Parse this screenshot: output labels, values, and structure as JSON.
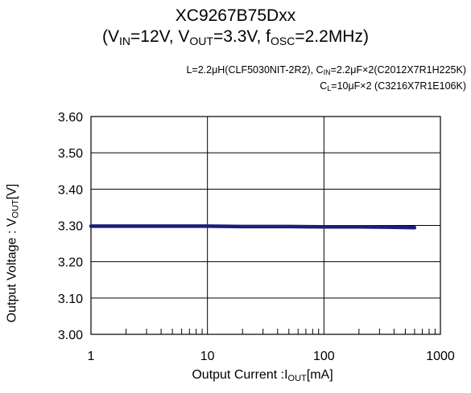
{
  "title": {
    "line1": "XC9267B75Dxx",
    "open": "(V",
    "vin_sub": "IN",
    "vin_val": "=12V, V",
    "vout_sub": "OUT",
    "vout_val": "=3.3V, f",
    "fosc_sub": "OSC",
    "fosc_val": "=2.2MHz)"
  },
  "conditions": {
    "line1_a": "L=2.2μH(CLF5030NIT-2R2), C",
    "line1_sub": "IN",
    "line1_b": "=2.2μF×2(C2012X7R1H225K)",
    "line2_a": "C",
    "line2_sub": "L",
    "line2_b": "=10μF×2 (C3216X7R1E106K)"
  },
  "axes": {
    "x_label_a": "Output Current :I",
    "x_label_sub": "OUT",
    "x_label_b": "[mA]",
    "y_label_a": "Output Voltage : V",
    "y_label_sub": "OUT",
    "y_label_b": "[V]"
  },
  "colors": {
    "series": "#1a1f7a",
    "grid": "#000000"
  },
  "chart_data": {
    "type": "line",
    "x_scale": "log",
    "xlim": [
      1,
      1000
    ],
    "ylim": [
      3.0,
      3.6
    ],
    "x_ticks": [
      "1",
      "10",
      "100",
      "1000"
    ],
    "y_ticks": [
      "3.60",
      "3.50",
      "3.40",
      "3.30",
      "3.20",
      "3.10",
      "3.00"
    ],
    "grid": true,
    "series": [
      {
        "x": [
          1,
          2,
          5,
          10,
          20,
          50,
          100,
          200,
          400,
          600
        ],
        "y": [
          3.298,
          3.298,
          3.298,
          3.298,
          3.297,
          3.297,
          3.296,
          3.296,
          3.295,
          3.294
        ]
      }
    ]
  }
}
